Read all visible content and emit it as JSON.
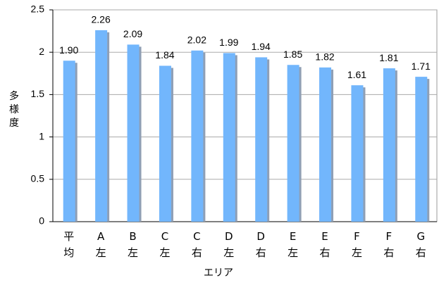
{
  "chart_data": {
    "type": "bar",
    "xlabel": "エリア",
    "ylabel": "多様度",
    "categories": [
      "平均",
      "A左",
      "B左",
      "C左",
      "C右",
      "D左",
      "D右",
      "E左",
      "E右",
      "F左",
      "F右",
      "G右"
    ],
    "values": [
      1.9,
      2.26,
      2.09,
      1.84,
      2.02,
      1.99,
      1.94,
      1.85,
      1.82,
      1.61,
      1.81,
      1.71
    ],
    "value_labels": [
      "1.90",
      "2.26",
      "2.09",
      "1.84",
      "2.02",
      "1.99",
      "1.94",
      "1.85",
      "1.82",
      "1.61",
      "1.81",
      "1.71"
    ],
    "color": "#72b6fc",
    "ylim": [
      0,
      2.5
    ],
    "yticks": [
      0,
      0.5,
      1,
      1.5,
      2,
      2.5
    ],
    "grid": true
  }
}
